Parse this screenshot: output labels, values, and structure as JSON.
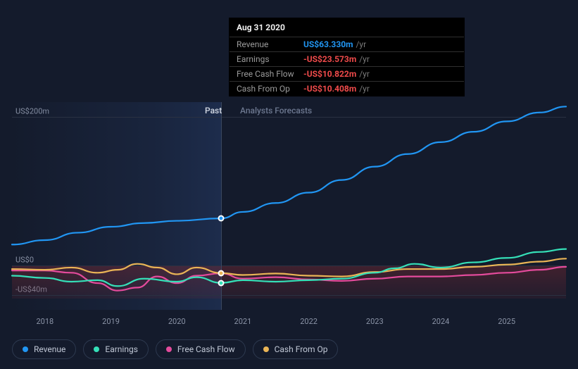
{
  "background_color": "#141b2c",
  "chart": {
    "type": "line",
    "x_years": [
      2018,
      2019,
      2020,
      2021,
      2022,
      2023,
      2024,
      2025
    ],
    "xlim": [
      2017.5,
      2025.9
    ],
    "ylim": [
      -60,
      220
    ],
    "y_ticks": [
      {
        "value": 200,
        "label": "US$200m"
      },
      {
        "value": 0,
        "label": "US$0"
      },
      {
        "value": -40,
        "label": "-US$40m"
      }
    ],
    "grid_color": "#2a3142",
    "divider_year": 2020.67,
    "past_label": "Past",
    "forecast_label": "Analysts Forecasts",
    "past_gradient_colors": [
      "rgba(30,45,75,0.0)",
      "rgba(40,65,115,0.45)"
    ],
    "negative_band_color": "rgba(120,40,50,0.35)",
    "line_width": 2.2,
    "series": {
      "revenue": {
        "label": "Revenue",
        "color": "#2196f3",
        "points": [
          [
            2017.5,
            28
          ],
          [
            2018,
            34
          ],
          [
            2018.5,
            44
          ],
          [
            2019,
            52
          ],
          [
            2019.5,
            57
          ],
          [
            2020,
            60
          ],
          [
            2020.67,
            63.3
          ],
          [
            2021,
            72
          ],
          [
            2021.5,
            84
          ],
          [
            2022,
            98
          ],
          [
            2022.5,
            115
          ],
          [
            2023,
            133
          ],
          [
            2023.5,
            150
          ],
          [
            2024,
            166
          ],
          [
            2024.5,
            180
          ],
          [
            2025,
            194
          ],
          [
            2025.5,
            206
          ],
          [
            2025.9,
            214
          ]
        ]
      },
      "earnings": {
        "label": "Earnings",
        "color": "#35e0b8",
        "points": [
          [
            2017.5,
            -14
          ],
          [
            2018,
            -17
          ],
          [
            2018.4,
            -22
          ],
          [
            2018.8,
            -20
          ],
          [
            2019.1,
            -28
          ],
          [
            2019.5,
            -18
          ],
          [
            2020,
            -22
          ],
          [
            2020.3,
            -16
          ],
          [
            2020.67,
            -23.6
          ],
          [
            2021,
            -20
          ],
          [
            2021.5,
            -22
          ],
          [
            2022,
            -20
          ],
          [
            2022.5,
            -18
          ],
          [
            2023,
            -10
          ],
          [
            2023.3,
            -4
          ],
          [
            2023.6,
            2
          ],
          [
            2024,
            -3
          ],
          [
            2024.5,
            4
          ],
          [
            2025,
            10
          ],
          [
            2025.5,
            18
          ],
          [
            2025.9,
            22
          ]
        ]
      },
      "fcf": {
        "label": "Free Cash Flow",
        "color": "#e44b9c",
        "points": [
          [
            2017.5,
            -7
          ],
          [
            2018,
            -7
          ],
          [
            2018.4,
            -10
          ],
          [
            2018.8,
            -24
          ],
          [
            2019.1,
            -34
          ],
          [
            2019.4,
            -30
          ],
          [
            2019.7,
            -15
          ],
          [
            2020,
            -24
          ],
          [
            2020.3,
            -14
          ],
          [
            2020.67,
            -10.8
          ],
          [
            2021,
            -18
          ],
          [
            2021.5,
            -16
          ],
          [
            2022,
            -19
          ],
          [
            2022.5,
            -21
          ],
          [
            2023,
            -18
          ],
          [
            2023.5,
            -15
          ],
          [
            2024,
            -15
          ],
          [
            2024.5,
            -13
          ],
          [
            2025,
            -10
          ],
          [
            2025.5,
            -6
          ],
          [
            2025.9,
            -2
          ]
        ]
      },
      "cfo": {
        "label": "Cash From Op",
        "color": "#eab556",
        "points": [
          [
            2017.5,
            -5
          ],
          [
            2018,
            -6
          ],
          [
            2018.4,
            -3
          ],
          [
            2018.8,
            -10
          ],
          [
            2019.1,
            -6
          ],
          [
            2019.4,
            2
          ],
          [
            2019.7,
            -3
          ],
          [
            2020,
            -12
          ],
          [
            2020.3,
            -3
          ],
          [
            2020.67,
            -10.4
          ],
          [
            2021,
            -13
          ],
          [
            2021.5,
            -11
          ],
          [
            2022,
            -14
          ],
          [
            2022.5,
            -15
          ],
          [
            2023,
            -9
          ],
          [
            2023.5,
            -5
          ],
          [
            2024,
            -5
          ],
          [
            2024.5,
            -2
          ],
          [
            2025,
            1
          ],
          [
            2025.5,
            5
          ],
          [
            2025.9,
            9
          ]
        ]
      }
    },
    "markers": [
      {
        "series": "revenue",
        "x": 2020.67,
        "y": 63.3
      },
      {
        "series": "cfo",
        "x": 2020.67,
        "y": -10.4
      },
      {
        "series": "earnings",
        "x": 2020.67,
        "y": -23.6
      }
    ]
  },
  "tooltip": {
    "date": "Aug 31 2020",
    "unit": "/yr",
    "rows": [
      {
        "label": "Revenue",
        "value": "US$63.330m",
        "color": "#2196f3"
      },
      {
        "label": "Earnings",
        "value": "-US$23.573m",
        "color": "#f14b4b"
      },
      {
        "label": "Free Cash Flow",
        "value": "-US$10.822m",
        "color": "#f14b4b"
      },
      {
        "label": "Cash From Op",
        "value": "-US$10.408m",
        "color": "#f14b4b"
      }
    ]
  },
  "legend": [
    {
      "key": "revenue",
      "label": "Revenue",
      "color": "#2196f3"
    },
    {
      "key": "earnings",
      "label": "Earnings",
      "color": "#35e0b8"
    },
    {
      "key": "fcf",
      "label": "Free Cash Flow",
      "color": "#e44b9c"
    },
    {
      "key": "cfo",
      "label": "Cash From Op",
      "color": "#eab556"
    }
  ]
}
